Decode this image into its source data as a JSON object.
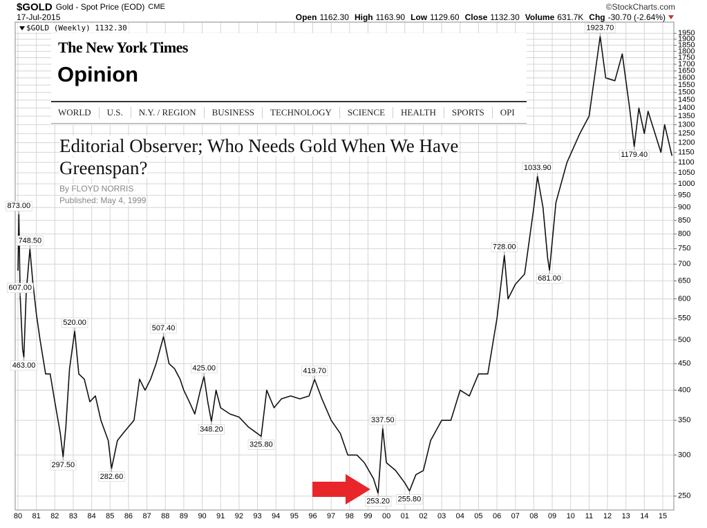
{
  "header": {
    "symbol": "$GOLD",
    "description": "Gold - Spot Price (EOD)",
    "exchange": "CME",
    "date": "17-Jul-2015",
    "source": "©StockCharts.com",
    "stats": [
      {
        "label": "Open",
        "value": "1162.30"
      },
      {
        "label": "High",
        "value": "1163.90"
      },
      {
        "label": "Low",
        "value": "1129.60"
      },
      {
        "label": "Close",
        "value": "1132.30"
      },
      {
        "label": "Volume",
        "value": "631.7K"
      },
      {
        "label": "Chg",
        "value": "-30.70 (-2.64%)"
      }
    ]
  },
  "chart_data": {
    "type": "line",
    "log_scale": true,
    "grid": true,
    "series": [
      {
        "name": "$GOLD (Weekly) 1132.30",
        "color": "#111111",
        "x": [
          1980.0,
          1980.05,
          1980.12,
          1980.25,
          1980.32,
          1980.45,
          1980.65,
          1980.8,
          1981.0,
          1981.2,
          1981.5,
          1981.75,
          1982.0,
          1982.3,
          1982.45,
          1982.6,
          1982.8,
          1983.08,
          1983.3,
          1983.6,
          1983.9,
          1984.2,
          1984.5,
          1984.9,
          1985.08,
          1985.4,
          1985.7,
          1986.0,
          1986.3,
          1986.6,
          1986.9,
          1987.2,
          1987.5,
          1987.9,
          1988.2,
          1988.5,
          1988.8,
          1989.0,
          1989.3,
          1989.6,
          1989.9,
          1990.1,
          1990.3,
          1990.5,
          1990.75,
          1991.0,
          1991.5,
          1992.0,
          1992.5,
          1993.0,
          1993.2,
          1993.5,
          1993.9,
          1994.3,
          1994.8,
          1995.3,
          1995.8,
          1996.1,
          1996.5,
          1997.0,
          1997.5,
          1997.9,
          1998.4,
          1998.8,
          1999.3,
          1999.55,
          1999.8,
          2000.0,
          2000.5,
          2001.0,
          2001.25,
          2001.6,
          2002.0,
          2002.4,
          2003.0,
          2003.5,
          2004.0,
          2004.5,
          2005.0,
          2005.5,
          2006.0,
          2006.4,
          2006.6,
          2007.0,
          2007.5,
          2008.0,
          2008.2,
          2008.5,
          2008.75,
          2008.85,
          2009.2,
          2009.8,
          2010.5,
          2011.0,
          2011.6,
          2011.9,
          2012.4,
          2012.8,
          2013.2,
          2013.45,
          2013.7,
          2014.0,
          2014.2,
          2014.9,
          2015.1,
          2015.5
        ],
        "values": [
          680,
          873,
          607,
          480,
          463,
          620,
          748.5,
          650,
          560,
          500,
          430,
          430,
          380,
          330,
          297.5,
          340,
          440,
          520,
          430,
          420,
          380,
          390,
          350,
          320,
          282.6,
          320,
          330,
          340,
          350,
          420,
          400,
          420,
          450,
          507.4,
          450,
          440,
          420,
          400,
          380,
          360,
          400,
          425,
          380,
          348.2,
          400,
          370,
          360,
          355,
          340,
          330,
          325.8,
          400,
          370,
          385,
          390,
          385,
          390,
          419.7,
          385,
          350,
          330,
          300,
          300,
          290,
          270,
          253.2,
          337.5,
          290,
          280,
          265,
          255.8,
          275,
          280,
          320,
          350,
          350,
          400,
          390,
          430,
          430,
          550,
          728,
          600,
          640,
          670,
          900,
          1033.9,
          900,
          720,
          681,
          920,
          1100,
          1250,
          1350,
          1923.7,
          1600,
          1580,
          1780,
          1400,
          1179.4,
          1400,
          1250,
          1380,
          1150,
          1300,
          1132.3
        ]
      }
    ],
    "annotations": [
      {
        "x": 1980.05,
        "value": 873,
        "label": "873.00"
      },
      {
        "x": 1980.65,
        "value": 748.5,
        "label": "748.50"
      },
      {
        "x": 1980.12,
        "value": 607,
        "label": "607.00"
      },
      {
        "x": 1980.32,
        "value": 463,
        "label": "463.00"
      },
      {
        "x": 1983.08,
        "value": 520,
        "label": "520.00"
      },
      {
        "x": 1982.45,
        "value": 297.5,
        "label": "297.50"
      },
      {
        "x": 1985.08,
        "value": 282.6,
        "label": "282.60"
      },
      {
        "x": 1987.9,
        "value": 507.4,
        "label": "507.40"
      },
      {
        "x": 1990.1,
        "value": 425,
        "label": "425.00"
      },
      {
        "x": 1990.5,
        "value": 348.2,
        "label": "348.20"
      },
      {
        "x": 1993.2,
        "value": 325.8,
        "label": "325.80"
      },
      {
        "x": 1996.1,
        "value": 419.7,
        "label": "419.70"
      },
      {
        "x": 1999.8,
        "value": 337.5,
        "label": "337.50"
      },
      {
        "x": 1999.55,
        "value": 253.2,
        "label": "253.20"
      },
      {
        "x": 2001.25,
        "value": 255.8,
        "label": "255.80"
      },
      {
        "x": 2006.4,
        "value": 728,
        "label": "728.00"
      },
      {
        "x": 2008.2,
        "value": 1033.9,
        "label": "1033.90"
      },
      {
        "x": 2008.85,
        "value": 681,
        "label": "681.00"
      },
      {
        "x": 2011.6,
        "value": 1923.7,
        "label": "1923.70"
      },
      {
        "x": 2013.45,
        "value": 1179.4,
        "label": "1179.40"
      }
    ],
    "xlim": [
      1979.85,
      2015.6
    ],
    "xticks": [
      {
        "value": 1980,
        "label": "80"
      },
      {
        "value": 1981,
        "label": "81"
      },
      {
        "value": 1982,
        "label": "82"
      },
      {
        "value": 1983,
        "label": "83"
      },
      {
        "value": 1984,
        "label": "84"
      },
      {
        "value": 1985,
        "label": "85"
      },
      {
        "value": 1986,
        "label": "86"
      },
      {
        "value": 1987,
        "label": "87"
      },
      {
        "value": 1988,
        "label": "88"
      },
      {
        "value": 1989,
        "label": "89"
      },
      {
        "value": 1990,
        "label": "90"
      },
      {
        "value": 1991,
        "label": "91"
      },
      {
        "value": 1992,
        "label": "92"
      },
      {
        "value": 1993,
        "label": "93"
      },
      {
        "value": 1994,
        "label": "94"
      },
      {
        "value": 1995,
        "label": "95"
      },
      {
        "value": 1996,
        "label": "96"
      },
      {
        "value": 1997,
        "label": "97"
      },
      {
        "value": 1998,
        "label": "98"
      },
      {
        "value": 1999,
        "label": "99"
      },
      {
        "value": 2000,
        "label": "00"
      },
      {
        "value": 2001,
        "label": "01"
      },
      {
        "value": 2002,
        "label": "02"
      },
      {
        "value": 2003,
        "label": "03"
      },
      {
        "value": 2004,
        "label": "04"
      },
      {
        "value": 2005,
        "label": "05"
      },
      {
        "value": 2006,
        "label": "06"
      },
      {
        "value": 2007,
        "label": "07"
      },
      {
        "value": 2008,
        "label": "08"
      },
      {
        "value": 2009,
        "label": "09"
      },
      {
        "value": 2010,
        "label": "10"
      },
      {
        "value": 2011,
        "label": "11"
      },
      {
        "value": 2012,
        "label": "12"
      },
      {
        "value": 2013,
        "label": "13"
      },
      {
        "value": 2014,
        "label": "14"
      },
      {
        "value": 2015,
        "label": "15"
      }
    ],
    "ylim": [
      235,
      2000
    ],
    "yticks": [
      250,
      300,
      350,
      400,
      450,
      500,
      550,
      600,
      650,
      700,
      750,
      800,
      850,
      900,
      950,
      1000,
      1050,
      1100,
      1150,
      1200,
      1250,
      1300,
      1350,
      1400,
      1450,
      1500,
      1550,
      1600,
      1650,
      1700,
      1750,
      1800,
      1850,
      1900,
      1950
    ]
  },
  "overlay": {
    "masthead": "The New York Times",
    "section": "Opinion",
    "nav": [
      "WORLD",
      "U.S.",
      "N.Y. / REGION",
      "BUSINESS",
      "TECHNOLOGY",
      "SCIENCE",
      "HEALTH",
      "SPORTS",
      "OPI"
    ],
    "headline": "Editorial Observer; Who Needs Gold When We Have Greenspan?",
    "byline": "By FLOYD NORRIS",
    "published": "Published: May 4, 1999"
  }
}
